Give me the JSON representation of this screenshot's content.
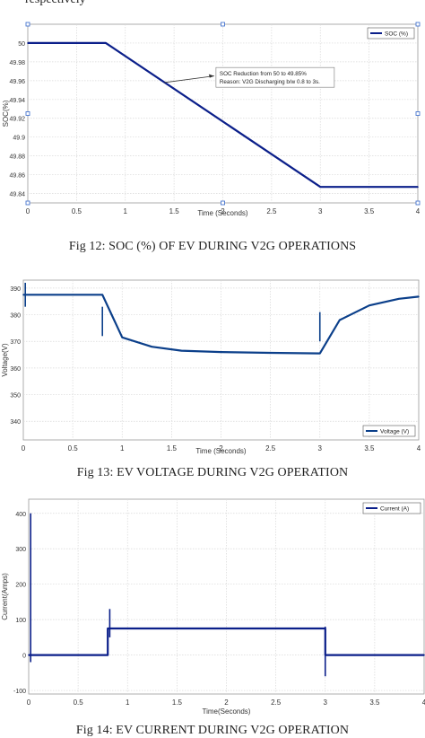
{
  "chart_data": [
    {
      "type": "line",
      "xlabel": "Time (Seconds)",
      "ylabel": "SOC(%)",
      "xlim": [
        0,
        4
      ],
      "ylim": [
        49.83,
        50.02
      ],
      "xticks": [
        "0",
        "0.5",
        "1",
        "1.5",
        "2",
        "2.5",
        "3",
        "3.5",
        "4"
      ],
      "yticks": [
        "50",
        "49.98",
        "49.96",
        "49.94",
        "49.92",
        "49.9",
        "49.88",
        "49.86",
        "49.84"
      ],
      "grid": true,
      "legend_position": "top-right",
      "series": [
        {
          "name": "SOC (%)",
          "color": "#0b1f8a",
          "x": [
            0,
            0.8,
            3.0,
            4.0
          ],
          "y": [
            50.0,
            50.0,
            49.847,
            49.847
          ]
        }
      ],
      "annotation": {
        "lines": [
          "SOC Reduction from 50 to 49.85%",
          "Reason: V2G Discharging b/w 0.8 to 3s."
        ],
        "arrow_from": [
          1.4,
          49.958
        ],
        "arrow_to": [
          2.0,
          49.965
        ]
      }
    },
    {
      "type": "line",
      "xlabel": "Time (Seconds)",
      "ylabel": "Voltage(V)",
      "xlim": [
        0,
        4
      ],
      "ylim": [
        333,
        393
      ],
      "xticks": [
        "0",
        "0.5",
        "1",
        "1.5",
        "2",
        "2.5",
        "3",
        "3.5",
        "4"
      ],
      "yticks": [
        "390",
        "380",
        "370",
        "360",
        "350",
        "340"
      ],
      "grid": true,
      "legend_position": "bottom-right",
      "series": [
        {
          "name": "Voltage (V)",
          "color": "#0b3f8a",
          "x": [
            0,
            0.8,
            1.0,
            1.3,
            1.6,
            2.0,
            2.5,
            3.0,
            3.2,
            3.5,
            3.8,
            4.0
          ],
          "y": [
            387.5,
            387.5,
            371.5,
            368,
            366.5,
            366,
            365.7,
            365.5,
            378,
            383.5,
            386,
            386.8
          ]
        }
      ]
    },
    {
      "type": "line",
      "xlabel": "Time(Seconds)",
      "ylabel": "Current(Amps)",
      "xlim": [
        0,
        4
      ],
      "ylim": [
        -110,
        440
      ],
      "xticks": [
        "0",
        "0.5",
        "1",
        "1.5",
        "2",
        "2.5",
        "3",
        "3.5",
        "4"
      ],
      "yticks": [
        "400",
        "300",
        "200",
        "100",
        "0",
        "-100"
      ],
      "grid": true,
      "legend_position": "top-right",
      "series": [
        {
          "name": "Current (A)",
          "color": "#0b1f8a",
          "x": [
            0,
            0.8,
            0.8,
            3.0,
            3.0,
            4.0
          ],
          "y": [
            0,
            0,
            75,
            75,
            0,
            0
          ]
        }
      ]
    }
  ],
  "captions": {
    "fig12": "Fig 12: SOC (%) OF EV DURING V2G OPERATIONS",
    "fig13": "Fig 13: EV VOLTAGE DURING V2G OPERATION",
    "fig14": "Fig 14: EV CURRENT DURING V2G OPERATION"
  },
  "top_fragment": "respectively"
}
